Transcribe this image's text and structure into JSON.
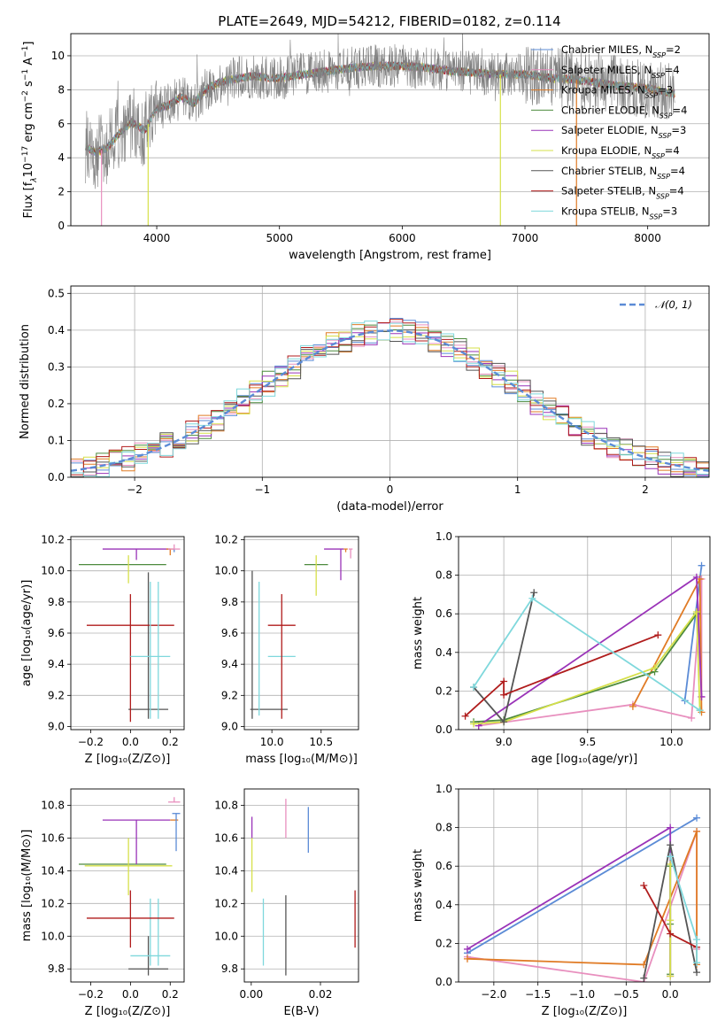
{
  "figure": {
    "title": "PLATE=2649, MJD=54212, FIBERID=0182, z=0.114"
  },
  "models": [
    {
      "name": "Chabrier MILES, N$_{SSP}$=2",
      "label": "Chabrier MILES, N",
      "sub": "SSP",
      "suffix": "=2",
      "color": "#5b8bd6"
    },
    {
      "name": "Salpeter MILES, N$_{SSP}$=4",
      "label": "Salpeter MILES, N",
      "sub": "SSP",
      "suffix": "=4",
      "color": "#e88fbe"
    },
    {
      "name": "Kroupa MILES, N$_{SSP}$=3",
      "label": "Kroupa MILES, N",
      "sub": "SSP",
      "suffix": "=3",
      "color": "#e07b25"
    },
    {
      "name": "Chabrier ELODIE, N$_{SSP}$=4",
      "label": "Chabrier ELODIE, N",
      "sub": "SSP",
      "suffix": "=4",
      "color": "#4d8b3e"
    },
    {
      "name": "Salpeter ELODIE, N$_{SSP}$=3",
      "label": "Salpeter ELODIE, N",
      "sub": "SSP",
      "suffix": "=3",
      "color": "#9a33b8"
    },
    {
      "name": "Kroupa ELODIE, N$_{SSP}$=4",
      "label": "Kroupa ELODIE, N",
      "sub": "SSP",
      "suffix": "=4",
      "color": "#d6e04a"
    },
    {
      "name": "Chabrier STELIB, N$_{SSP}$=4",
      "label": "Chabrier STELIB, N",
      "sub": "SSP",
      "suffix": "=4",
      "color": "#555555"
    },
    {
      "name": "Salpeter STELIB, N$_{SSP}$=4",
      "label": "Salpeter STELIB, N",
      "sub": "SSP",
      "suffix": "=4",
      "color": "#b01c1c"
    },
    {
      "name": "Kroupa STELIB, N$_{SSP}$=3",
      "label": "Kroupa STELIB, N",
      "sub": "SSP",
      "suffix": "=3",
      "color": "#7fd8dc"
    }
  ],
  "chart_data": [
    {
      "id": "spectrum",
      "type": "line",
      "xlabel": "wavelength [Angstrom, rest frame]",
      "ylabel": "Flux [f_λ 10^-17 erg cm^-2 s^-1 A^-1]",
      "ylabel_parts": [
        "Flux [f",
        "λ",
        "10",
        "−17",
        " erg cm",
        "−2",
        " s",
        "−1",
        " A",
        "−1",
        "]"
      ],
      "xlim": [
        3300,
        8500
      ],
      "ylim": [
        0,
        11.3
      ],
      "xticks": [
        4000,
        5000,
        6000,
        7000,
        8000
      ],
      "yticks": [
        0,
        2,
        4,
        6,
        8,
        10
      ],
      "data_color": "#808080",
      "continuum": {
        "x": [
          3420,
          3500,
          3600,
          3700,
          3800,
          3900,
          4000,
          4100,
          4200,
          4300,
          4400,
          4500,
          4600,
          4700,
          4800,
          4900,
          5000,
          5200,
          5400,
          5600,
          5800,
          6000,
          6200,
          6400,
          6600,
          6800,
          7000,
          7200,
          7400,
          7600,
          7800,
          8000,
          8200
        ],
        "y": [
          4.7,
          4.3,
          4.6,
          5.5,
          6.1,
          5.6,
          6.9,
          7.1,
          7.6,
          7.2,
          8.0,
          8.4,
          8.6,
          8.7,
          8.8,
          8.7,
          8.7,
          8.9,
          9.1,
          9.3,
          9.4,
          9.4,
          9.3,
          9.1,
          9.0,
          8.9,
          8.9,
          8.7,
          8.6,
          8.4,
          8.2,
          8.1,
          7.8
        ]
      },
      "dips": [
        {
          "x": 3550,
          "to": 0.0,
          "series": "Salpeter MILES"
        },
        {
          "x": 3930,
          "to": 0.0,
          "series": "Kroupa ELODIE"
        },
        {
          "x": 6800,
          "to": 0.0,
          "series": "Kroupa ELODIE"
        },
        {
          "x": 7420,
          "to": 0.0,
          "series": "Kroupa MILES"
        }
      ],
      "legend": "upper right"
    },
    {
      "id": "residuals",
      "type": "histogram",
      "xlabel": "(data-model)/error",
      "ylabel": "Normed distribution",
      "xlim": [
        -2.5,
        2.5
      ],
      "ylim": [
        0,
        0.52
      ],
      "xticks": [
        -2,
        -1,
        0,
        1,
        2
      ],
      "yticks": [
        0,
        0.1,
        0.2,
        0.3,
        0.4,
        0.5
      ],
      "reference": {
        "name": "N(0,1)",
        "label": "𝒩(0, 1)",
        "color": "#5b8bd6",
        "style": "dashed"
      },
      "bin_width": 0.1,
      "grid": true,
      "legend": "upper right"
    },
    {
      "id": "age_vs_Z",
      "type": "errorbar",
      "xlabel": "Z [log10(Z/Z⊙)]",
      "ylabel": "age  [log10(age/yr)]",
      "xlim": [
        -0.3,
        0.27
      ],
      "ylim": [
        8.98,
        10.22
      ],
      "xticks": [
        -0.2,
        0.0,
        0.2
      ],
      "yticks": [
        9.0,
        9.2,
        9.4,
        9.6,
        9.8,
        10.0,
        10.2
      ],
      "points": [
        {
          "series": "Chabrier STELIB",
          "x": 0.09,
          "y": 9.11,
          "xerr": 0.1,
          "yerr": [
            0.06,
            0.88
          ]
        },
        {
          "series": "Salpeter STELIB",
          "x": 0.0,
          "y": 9.65,
          "xerr": 0.22,
          "yerr": [
            0.62,
            0.2
          ]
        },
        {
          "series": "Kroupa STELIB",
          "x": 0.1,
          "y": 9.45,
          "xerr": 0.1,
          "yerr": [
            0.4,
            0.48
          ]
        },
        {
          "series": "Kroupa STELIB",
          "x": 0.14,
          "y": 9.45,
          "xerr": 0.0,
          "yerr": [
            0.4,
            0.48
          ]
        },
        {
          "series": "Chabrier ELODIE",
          "x": -0.04,
          "y": 10.04,
          "xerr": 0.22,
          "yerr": [
            0.0,
            0.0
          ]
        },
        {
          "series": "Kroupa ELODIE",
          "x": -0.01,
          "y": 10.04,
          "xerr": 0.0,
          "yerr": [
            0.12,
            0.06
          ]
        },
        {
          "series": "Salpeter ELODIE",
          "x": 0.03,
          "y": 10.14,
          "xerr": 0.17,
          "yerr": [
            0.07,
            0.0
          ]
        },
        {
          "series": "Kroupa MILES",
          "x": 0.2,
          "y": 10.14,
          "xerr": 0.02,
          "yerr": [
            0.04,
            0.0
          ]
        },
        {
          "series": "Chabrier MILES",
          "x": 0.22,
          "y": 10.14,
          "xerr": 0.0,
          "yerr": [
            0.02,
            0.0
          ]
        },
        {
          "series": "Salpeter MILES",
          "x": 0.22,
          "y": 10.14,
          "xerr": 0.03,
          "yerr": [
            0.0,
            0.03
          ]
        }
      ]
    },
    {
      "id": "age_vs_mass",
      "type": "errorbar",
      "xlabel": "mass [log10(M/M⊙)]",
      "ylabel": "",
      "xlim": [
        9.72,
        10.88
      ],
      "ylim": [
        8.98,
        10.22
      ],
      "xticks": [
        10.0,
        10.5
      ],
      "yticks": [
        9.0,
        9.2,
        9.4,
        9.6,
        9.8,
        10.0,
        10.2
      ],
      "points": [
        {
          "series": "Chabrier STELIB",
          "x": 9.8,
          "y": 9.11,
          "xerr": 0.0,
          "yerr": [
            0.06,
            0.89
          ]
        },
        {
          "series": "Chabrier STELIB",
          "x": 9.97,
          "y": 9.11,
          "xerr": 0.19,
          "yerr": [
            0.0,
            0.0
          ]
        },
        {
          "series": "Kroupa STELIB",
          "x": 9.87,
          "y": 9.45,
          "xerr": 0.0,
          "yerr": [
            0.38,
            0.48
          ]
        },
        {
          "series": "Kroupa STELIB",
          "x": 10.1,
          "y": 9.45,
          "xerr": 0.14,
          "yerr": [
            0.0,
            0.0
          ]
        },
        {
          "series": "Salpeter STELIB",
          "x": 10.1,
          "y": 9.65,
          "xerr": 0.14,
          "yerr": [
            0.6,
            0.2
          ]
        },
        {
          "series": "Chabrier ELODIE",
          "x": 10.45,
          "y": 10.04,
          "xerr": 0.12,
          "yerr": [
            0.0,
            0.0
          ]
        },
        {
          "series": "Kroupa ELODIE",
          "x": 10.45,
          "y": 10.04,
          "xerr": 0.0,
          "yerr": [
            0.2,
            0.06
          ]
        },
        {
          "series": "Salpeter ELODIE",
          "x": 10.7,
          "y": 10.14,
          "xerr": 0.0,
          "yerr": [
            0.2,
            0.0
          ]
        },
        {
          "series": "Salpeter ELODIE",
          "x": 10.63,
          "y": 10.14,
          "xerr": 0.1,
          "yerr": [
            0.0,
            0.0
          ]
        },
        {
          "series": "Kroupa MILES",
          "x": 10.75,
          "y": 10.14,
          "xerr": 0.02,
          "yerr": [
            0.02,
            0.0
          ]
        },
        {
          "series": "Salpeter MILES",
          "x": 10.8,
          "y": 10.14,
          "xerr": 0.02,
          "yerr": [
            0.06,
            0.0
          ]
        }
      ]
    },
    {
      "id": "weight_vs_age",
      "type": "line",
      "xlabel": "age  [log10(age/yr)]",
      "ylabel": "mass weight",
      "xlim": [
        8.73,
        10.23
      ],
      "ylim": [
        0.0,
        1.0
      ],
      "xticks": [
        9.0,
        9.5,
        10.0
      ],
      "yticks": [
        0.0,
        0.2,
        0.4,
        0.6,
        0.8,
        1.0
      ],
      "grid": true,
      "series": [
        {
          "name": "Chabrier MILES",
          "x": [
            10.08,
            10.18
          ],
          "y": [
            0.15,
            0.85
          ]
        },
        {
          "name": "Salpeter MILES",
          "x": [
            8.85,
            9.77,
            10.12,
            10.18,
            10.18
          ],
          "y": [
            0.02,
            0.13,
            0.06,
            0.78,
            0.17
          ]
        },
        {
          "name": "Kroupa MILES",
          "x": [
            9.77,
            10.17,
            10.18
          ],
          "y": [
            0.12,
            0.78,
            0.09
          ]
        },
        {
          "name": "Chabrier ELODIE",
          "x": [
            8.82,
            9.0,
            9.9,
            10.15
          ],
          "y": [
            0.04,
            0.05,
            0.3,
            0.6
          ]
        },
        {
          "name": "Salpeter ELODIE",
          "x": [
            8.85,
            10.15,
            10.18
          ],
          "y": [
            0.02,
            0.79,
            0.17
          ]
        },
        {
          "name": "Kroupa ELODIE",
          "x": [
            8.82,
            9.0,
            9.9,
            10.15,
            10.17
          ],
          "y": [
            0.03,
            0.04,
            0.32,
            0.61,
            0.1
          ]
        },
        {
          "name": "Chabrier STELIB",
          "x": [
            8.82,
            9.0,
            9.18
          ],
          "y": [
            0.22,
            0.04,
            0.71
          ]
        },
        {
          "name": "Salpeter STELIB",
          "x": [
            8.77,
            9.0,
            9.0,
            9.92
          ],
          "y": [
            0.07,
            0.25,
            0.18,
            0.49
          ]
        },
        {
          "name": "Kroupa STELIB",
          "x": [
            8.82,
            9.17,
            10.17
          ],
          "y": [
            0.22,
            0.68,
            0.1
          ]
        }
      ]
    },
    {
      "id": "mass_vs_Z",
      "type": "errorbar",
      "xlabel": "Z [log10(Z/Z⊙)]",
      "ylabel": "mass [log10(M/M⊙)]",
      "xlim": [
        -0.3,
        0.27
      ],
      "ylim": [
        9.72,
        10.9
      ],
      "xticks": [
        -0.2,
        0.0,
        0.2
      ],
      "yticks": [
        9.8,
        10.0,
        10.2,
        10.4,
        10.6,
        10.8
      ],
      "points": [
        {
          "series": "Chabrier STELIB",
          "x": 0.09,
          "y": 9.8,
          "xerr": 0.1,
          "yerr": [
            0.04,
            0.2
          ]
        },
        {
          "series": "Kroupa STELIB",
          "x": 0.1,
          "y": 9.88,
          "xerr": 0.1,
          "yerr": [
            0.06,
            0.35
          ]
        },
        {
          "series": "Kroupa STELIB",
          "x": 0.14,
          "y": 9.88,
          "xerr": 0.0,
          "yerr": [
            0.06,
            0.35
          ]
        },
        {
          "series": "Salpeter STELIB",
          "x": 0.0,
          "y": 10.11,
          "xerr": 0.22,
          "yerr": [
            0.18,
            0.17
          ]
        },
        {
          "series": "Chabrier ELODIE",
          "x": -0.04,
          "y": 10.44,
          "xerr": 0.22,
          "yerr": [
            0.0,
            0.0
          ]
        },
        {
          "series": "Kroupa ELODIE",
          "x": -0.01,
          "y": 10.43,
          "xerr": 0.22,
          "yerr": [
            0.18,
            0.17
          ]
        },
        {
          "series": "Salpeter ELODIE",
          "x": 0.03,
          "y": 10.71,
          "xerr": 0.17,
          "yerr": [
            0.27,
            0.0
          ]
        },
        {
          "series": "Kroupa MILES",
          "x": 0.22,
          "y": 10.71,
          "xerr": 0.02,
          "yerr": [
            0.0,
            0.0
          ]
        },
        {
          "series": "Chabrier MILES",
          "x": 0.23,
          "y": 10.75,
          "xerr": 0.02,
          "yerr": [
            0.23,
            0.0
          ]
        },
        {
          "series": "Salpeter MILES",
          "x": 0.22,
          "y": 10.82,
          "xerr": 0.03,
          "yerr": [
            0.0,
            0.03
          ]
        }
      ]
    },
    {
      "id": "mass_vs_ebv",
      "type": "errorbar",
      "xlabel": "E(B-V)",
      "ylabel": "",
      "xlim": [
        -0.002,
        0.031
      ],
      "ylim": [
        9.72,
        10.9
      ],
      "xticks": [
        0.0,
        0.02
      ],
      "xtick_labels": [
        "0.00",
        "0.02"
      ],
      "yticks": [
        9.8,
        10.0,
        10.2,
        10.4,
        10.6,
        10.8
      ],
      "points": [
        {
          "series": "Chabrier STELIB",
          "x": 0.01,
          "y": 10.0,
          "yerr": [
            0.24,
            0.25
          ]
        },
        {
          "series": "Kroupa STELIB",
          "x": 0.0035,
          "y": 10.03,
          "yerr": [
            0.21,
            0.2
          ]
        },
        {
          "series": "Salpeter STELIB",
          "x": 0.03,
          "y": 10.11,
          "yerr": [
            0.18,
            0.17
          ]
        },
        {
          "series": "Kroupa ELODIE",
          "x": 0.0002,
          "y": 10.43,
          "yerr": [
            0.16,
            0.17
          ]
        },
        {
          "series": "Salpeter ELODIE",
          "x": 0.0002,
          "y": 10.66,
          "yerr": [
            0.06,
            0.07
          ]
        },
        {
          "series": "Chabrier MILES",
          "x": 0.0165,
          "y": 10.65,
          "yerr": [
            0.14,
            0.14
          ]
        },
        {
          "series": "Salpeter MILES",
          "x": 0.01,
          "y": 10.72,
          "yerr": [
            0.12,
            0.12
          ]
        }
      ]
    },
    {
      "id": "weight_vs_Z",
      "type": "line",
      "xlabel": "Z [log10(Z/Z⊙)]",
      "ylabel": "mass weight",
      "xlim": [
        -2.4,
        0.45
      ],
      "ylim": [
        0.0,
        1.0
      ],
      "xticks": [
        -2.0,
        -1.5,
        -1.0,
        -0.5,
        0.0
      ],
      "xtick_labels": [
        "−2.0",
        "−1.5",
        "−1.0",
        "−0.5",
        "0.0"
      ],
      "yticks": [
        0.0,
        0.2,
        0.4,
        0.6,
        0.8,
        1.0
      ],
      "grid": true,
      "series": [
        {
          "name": "Chabrier MILES",
          "x": [
            -2.3,
            0.3
          ],
          "y": [
            0.15,
            0.85
          ]
        },
        {
          "name": "Salpeter MILES",
          "x": [
            -2.3,
            -0.3,
            0.3,
            0.3
          ],
          "y": [
            0.13,
            0.0,
            0.78,
            0.17
          ]
        },
        {
          "name": "Kroupa MILES",
          "x": [
            -2.3,
            -0.3,
            0.3,
            0.3
          ],
          "y": [
            0.12,
            0.09,
            0.78,
            0.09
          ]
        },
        {
          "name": "Chabrier ELODIE",
          "x": [
            0.0,
            0.0,
            0.0
          ],
          "y": [
            0.04,
            0.3,
            0.6
          ]
        },
        {
          "name": "Salpeter ELODIE",
          "x": [
            -2.3,
            0.0,
            0.0
          ],
          "y": [
            0.17,
            0.8,
            0.03
          ]
        },
        {
          "name": "Kroupa ELODIE",
          "x": [
            0.0,
            0.0,
            0.0
          ],
          "y": [
            0.03,
            0.32,
            0.61
          ]
        },
        {
          "name": "Chabrier STELIB",
          "x": [
            -0.3,
            0.0,
            0.3
          ],
          "y": [
            0.02,
            0.71,
            0.05
          ]
        },
        {
          "name": "Salpeter STELIB",
          "x": [
            -0.3,
            0.0,
            0.3
          ],
          "y": [
            0.5,
            0.25,
            0.18
          ]
        },
        {
          "name": "Kroupa STELIB",
          "x": [
            0.0,
            0.3,
            0.3
          ],
          "y": [
            0.65,
            0.22,
            0.1
          ]
        }
      ]
    }
  ]
}
